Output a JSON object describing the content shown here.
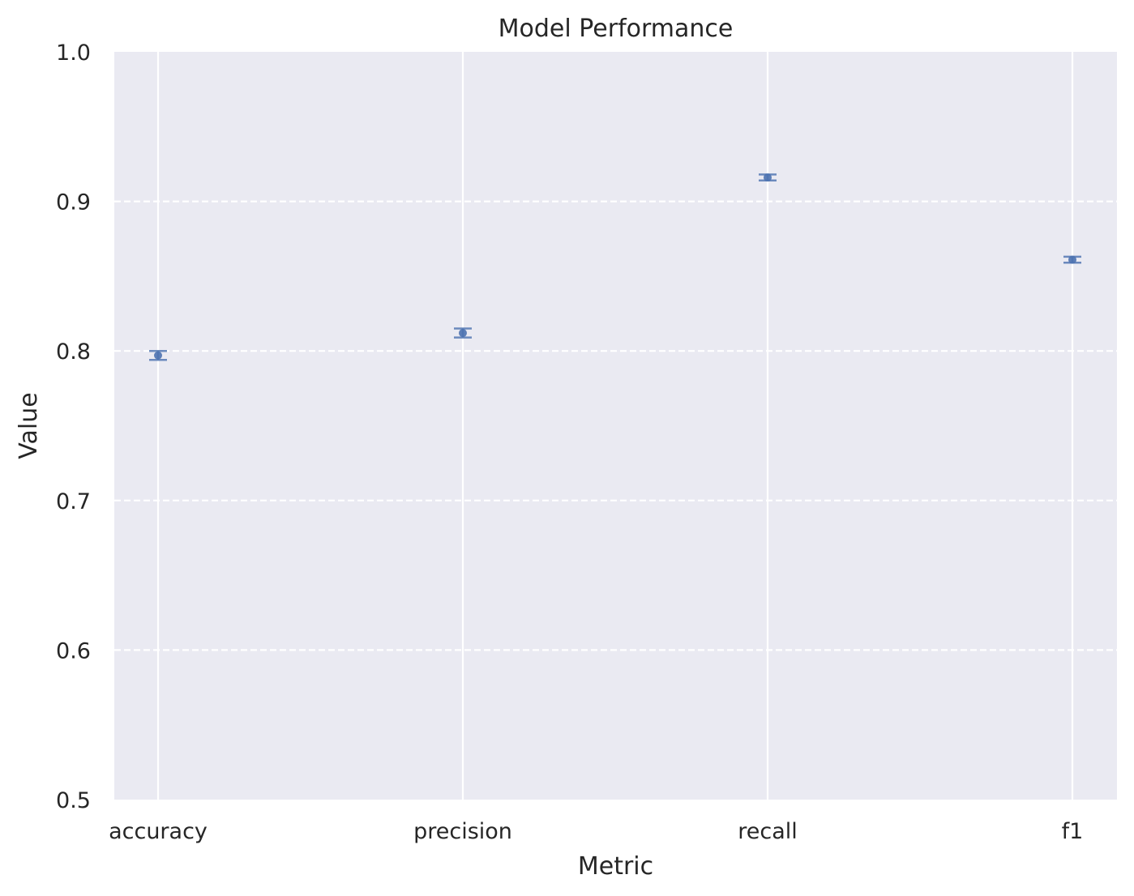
{
  "chart_data": {
    "type": "scatter",
    "title": "Model Performance",
    "xlabel": "Metric",
    "ylabel": "Value",
    "categories": [
      "accuracy",
      "precision",
      "recall",
      "f1"
    ],
    "values": [
      0.797,
      0.812,
      0.916,
      0.861
    ],
    "errors": [
      0.003,
      0.003,
      0.002,
      0.002
    ],
    "ylim": [
      0.5,
      1.0
    ],
    "yticks": [
      "0.5",
      "0.6",
      "0.7",
      "0.8",
      "0.9",
      "1.0"
    ],
    "ytick_values": [
      0.5,
      0.6,
      0.7,
      0.8,
      0.9,
      1.0
    ],
    "grid": true,
    "grid_style": "vertical solid, horizontal dashed",
    "colors": {
      "background": "#eaeaf2",
      "grid": "#ffffff",
      "marker": "#4c72b0",
      "text": "#262626"
    }
  }
}
